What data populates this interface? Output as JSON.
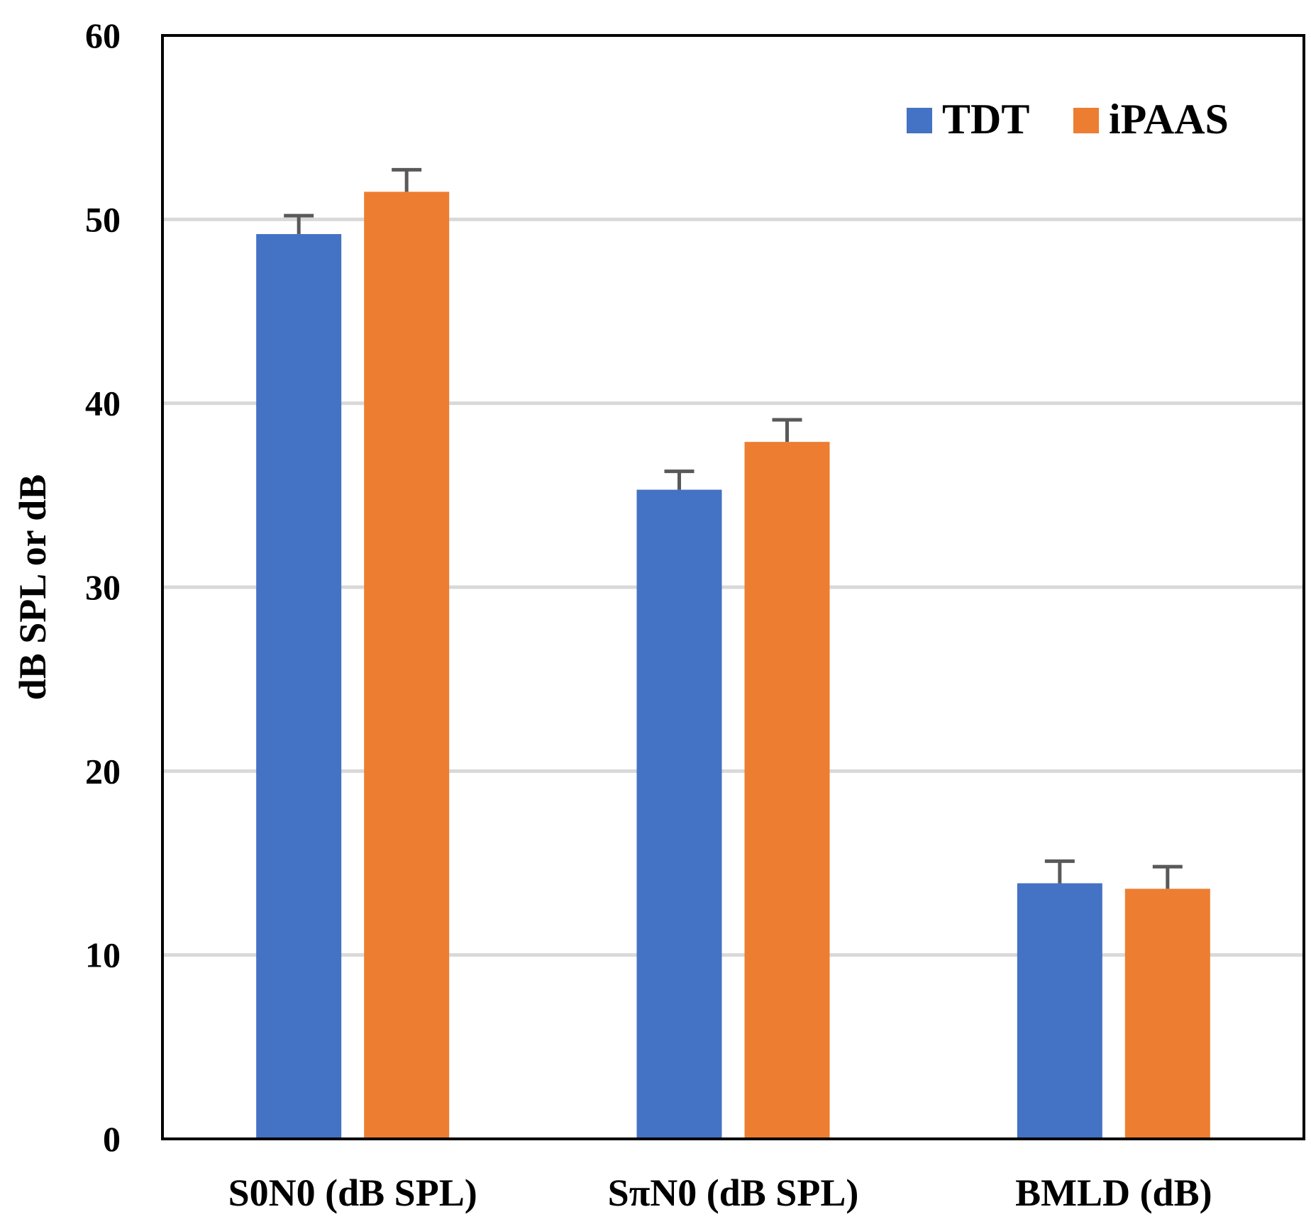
{
  "chart_data": {
    "type": "bar",
    "title": "",
    "xlabel": "",
    "ylabel": "dB SPL or dB",
    "ylim": [
      0,
      60
    ],
    "yticks": [
      "0",
      "10",
      "20",
      "30",
      "40",
      "50",
      "60"
    ],
    "ytick_values": [
      0,
      10,
      20,
      30,
      40,
      50,
      60
    ],
    "grid": true,
    "legend_position": "top-right",
    "categories": [
      "S0N0 (dB SPL)",
      "SπN0 (dB SPL)",
      "BMLD (dB)"
    ],
    "series": [
      {
        "name": "TDT",
        "color": "#4472C4",
        "values": [
          49.2,
          35.3,
          13.9
        ],
        "errors": [
          1.0,
          1.0,
          1.2
        ]
      },
      {
        "name": "iPAAS",
        "color": "#ED7D31",
        "values": [
          51.5,
          37.9,
          13.6
        ],
        "errors": [
          1.2,
          1.2,
          1.2
        ]
      }
    ],
    "error_bar_color": "#595959",
    "grid_color": "#D9D9D9"
  }
}
